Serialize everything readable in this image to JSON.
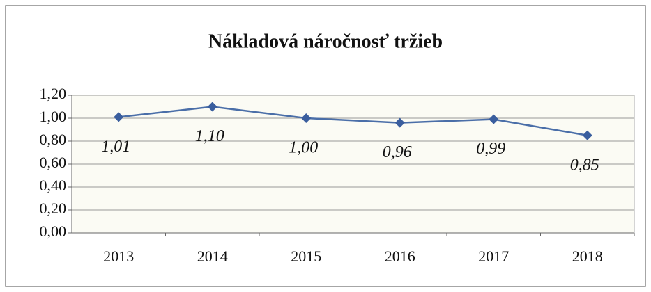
{
  "chart_data": {
    "type": "line",
    "title": "Nákladová náročnosť tržieb",
    "categories": [
      "2013",
      "2014",
      "2015",
      "2016",
      "2017",
      "2018"
    ],
    "series": [
      {
        "name": "Nákladová náročnosť tržieb",
        "color": "#4a6ea8",
        "values": [
          1.01,
          1.1,
          1.0,
          0.96,
          0.99,
          0.85
        ],
        "value_labels": [
          "1,01",
          "1,10",
          "1,00",
          "0,96",
          "0,99",
          "0,85"
        ]
      }
    ],
    "ylim": [
      0,
      1.2
    ],
    "yticks": [
      {
        "value": 0,
        "label": "0,00"
      },
      {
        "value": 0.2,
        "label": "0,20"
      },
      {
        "value": 0.4,
        "label": "0,40"
      },
      {
        "value": 0.6,
        "label": "0,60"
      },
      {
        "value": 0.8,
        "label": "0,80"
      },
      {
        "value": 1.0,
        "label": "1,00"
      },
      {
        "value": 1.2,
        "label": "1,20"
      }
    ],
    "grid": true
  }
}
